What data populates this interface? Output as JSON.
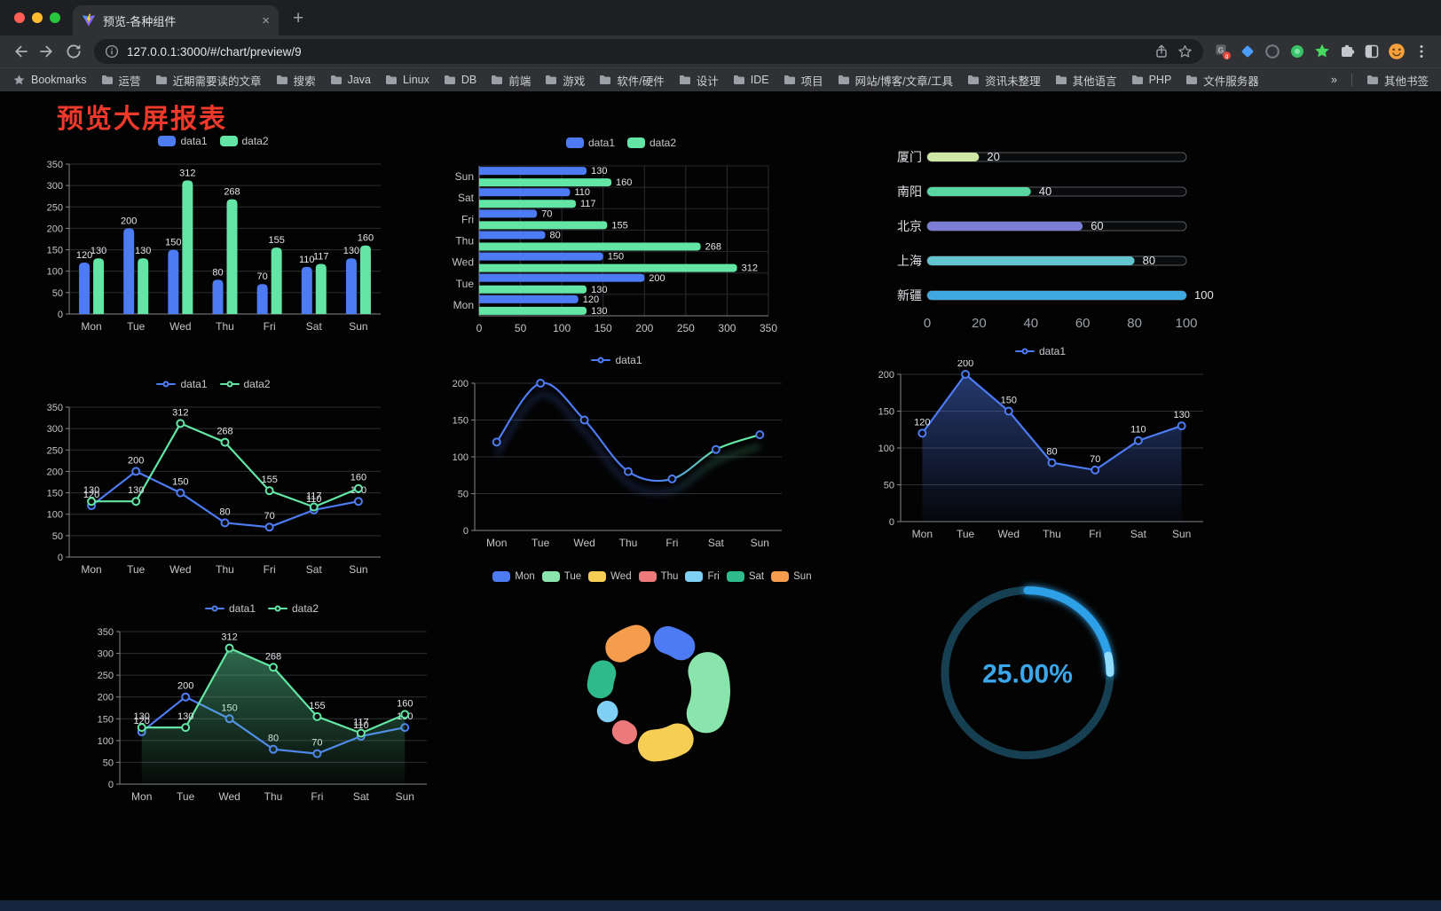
{
  "browser": {
    "tab": {
      "title": "预览-各种组件"
    },
    "address": {
      "url": "127.0.0.1:3000/#/chart/preview/9"
    },
    "bookmarks_bar": {
      "bookmarks_label": "Bookmarks",
      "folders": [
        "运营",
        "近期需要读的文章",
        "搜索",
        "Java",
        "Linux",
        "DB",
        "前端",
        "游戏",
        "软件/硬件",
        "设计",
        "IDE",
        "项目",
        "网站/博客/文章/工具",
        "资讯未整理",
        "其他语言",
        "PHP",
        "文件服务器"
      ],
      "overflow": "»",
      "other_bookmarks": "其他书签"
    }
  },
  "page": {
    "title": "预览大屏报表"
  },
  "palette": {
    "data1_blue": "#4d7bf3",
    "data2_green": "#63e6a5",
    "title_red": "#ee392b"
  },
  "chart_data": [
    {
      "id": "grouped-bar",
      "type": "bar",
      "categories": [
        "Mon",
        "Tue",
        "Wed",
        "Thu",
        "Fri",
        "Sat",
        "Sun"
      ],
      "series": [
        {
          "name": "data1",
          "color": "#4d7bf3",
          "values": [
            120,
            200,
            150,
            80,
            70,
            110,
            130
          ]
        },
        {
          "name": "data2",
          "color": "#63e6a5",
          "values": [
            130,
            130,
            312,
            268,
            155,
            117,
            160
          ]
        }
      ],
      "ylim": [
        0,
        350
      ],
      "yticks": [
        0,
        50,
        100,
        150,
        200,
        250,
        300,
        350
      ],
      "legend_position": "top",
      "grid": true
    },
    {
      "id": "horizontal-bar",
      "type": "hbar",
      "categories": [
        "Mon",
        "Tue",
        "Wed",
        "Thu",
        "Fri",
        "Sat",
        "Sun"
      ],
      "series": [
        {
          "name": "data1",
          "color": "#4d7bf3",
          "values": [
            120,
            200,
            150,
            80,
            70,
            110,
            130
          ]
        },
        {
          "name": "data2",
          "color": "#63e6a5",
          "values": [
            130,
            130,
            312,
            268,
            155,
            117,
            160
          ]
        }
      ],
      "xlim": [
        0,
        350
      ],
      "xticks": [
        0,
        50,
        100,
        150,
        200,
        250,
        300,
        350
      ],
      "legend_position": "top",
      "grid": true
    },
    {
      "id": "progress-bars",
      "type": "progress",
      "max": 100,
      "items": [
        {
          "label": "厦门",
          "value": 20,
          "color": "#cfe7a5"
        },
        {
          "label": "南阳",
          "value": 40,
          "color": "#58d7a3"
        },
        {
          "label": "北京",
          "value": 60,
          "color": "#7c7ed6"
        },
        {
          "label": "上海",
          "value": 80,
          "color": "#62c5cf"
        },
        {
          "label": "新疆",
          "value": 100,
          "color": "#3fa8df"
        }
      ],
      "xticks": [
        0,
        20,
        40,
        60,
        80,
        100
      ]
    },
    {
      "id": "line-two-series",
      "type": "line",
      "categories": [
        "Mon",
        "Tue",
        "Wed",
        "Thu",
        "Fri",
        "Sat",
        "Sun"
      ],
      "series": [
        {
          "name": "data1",
          "color": "#4d7bf3",
          "values": [
            120,
            200,
            150,
            80,
            70,
            110,
            130
          ],
          "labels": true
        },
        {
          "name": "data2",
          "color": "#63e6a5",
          "values": [
            130,
            130,
            312,
            268,
            155,
            117,
            160
          ],
          "labels": true
        }
      ],
      "ylim": [
        0,
        350
      ],
      "yticks": [
        0,
        50,
        100,
        150,
        200,
        250,
        300,
        350
      ],
      "legend_position": "top",
      "grid": true
    },
    {
      "id": "line-gradient-shadow",
      "type": "line",
      "categories": [
        "Mon",
        "Tue",
        "Wed",
        "Thu",
        "Fri",
        "Sat",
        "Sun"
      ],
      "series": [
        {
          "name": "data1",
          "color": "#4d7bf3",
          "color2": "#63e6a5",
          "gradient": true,
          "shadow": true,
          "smooth": true,
          "values": [
            120,
            200,
            150,
            80,
            70,
            110,
            130
          ],
          "labels": false
        }
      ],
      "ylim": [
        0,
        200
      ],
      "yticks": [
        0,
        50,
        100,
        150,
        200
      ],
      "legend_position": "top",
      "grid": true
    },
    {
      "id": "line-area-single",
      "type": "line",
      "categories": [
        "Mon",
        "Tue",
        "Wed",
        "Thu",
        "Fri",
        "Sat",
        "Sun"
      ],
      "series": [
        {
          "name": "data1",
          "color": "#4d7bf3",
          "values": [
            120,
            200,
            150,
            80,
            70,
            110,
            130
          ],
          "labels": true,
          "area": true
        }
      ],
      "ylim": [
        0,
        200
      ],
      "yticks": [
        0,
        50,
        100,
        150,
        200
      ],
      "legend_position": "top",
      "grid": true
    },
    {
      "id": "line-two-series-area",
      "type": "line",
      "categories": [
        "Mon",
        "Tue",
        "Wed",
        "Thu",
        "Fri",
        "Sat",
        "Sun"
      ],
      "series": [
        {
          "name": "data1",
          "color": "#4d7bf3",
          "values": [
            120,
            200,
            150,
            80,
            70,
            110,
            130
          ],
          "labels": true
        },
        {
          "name": "data2",
          "color": "#63e6a5",
          "values": [
            130,
            130,
            312,
            268,
            155,
            117,
            160
          ],
          "labels": true,
          "area": true
        }
      ],
      "ylim": [
        0,
        350
      ],
      "yticks": [
        0,
        50,
        100,
        150,
        200,
        250,
        300,
        350
      ],
      "legend_position": "top",
      "grid": true
    },
    {
      "id": "rose-donut",
      "type": "rose",
      "legend_position": "top",
      "items": [
        {
          "name": "Mon",
          "value": 120,
          "color": "#4d7bf3"
        },
        {
          "name": "Tue",
          "value": 200,
          "color": "#89e5ab"
        },
        {
          "name": "Wed",
          "value": 150,
          "color": "#f7ce54"
        },
        {
          "name": "Thu",
          "value": 80,
          "color": "#ed7a7a"
        },
        {
          "name": "Fri",
          "value": 70,
          "color": "#7fd0f2"
        },
        {
          "name": "Sat",
          "value": 110,
          "color": "#2fba8c"
        },
        {
          "name": "Sun",
          "value": 130,
          "color": "#f59d4d"
        }
      ]
    },
    {
      "id": "gauge-progress",
      "type": "gauge",
      "value": 25,
      "label": "25.00%",
      "ring_color": "#163f51",
      "progress_color": "#2da0e8",
      "tip_color": "#8fdcff",
      "text_color": "#3ba6ea"
    }
  ]
}
